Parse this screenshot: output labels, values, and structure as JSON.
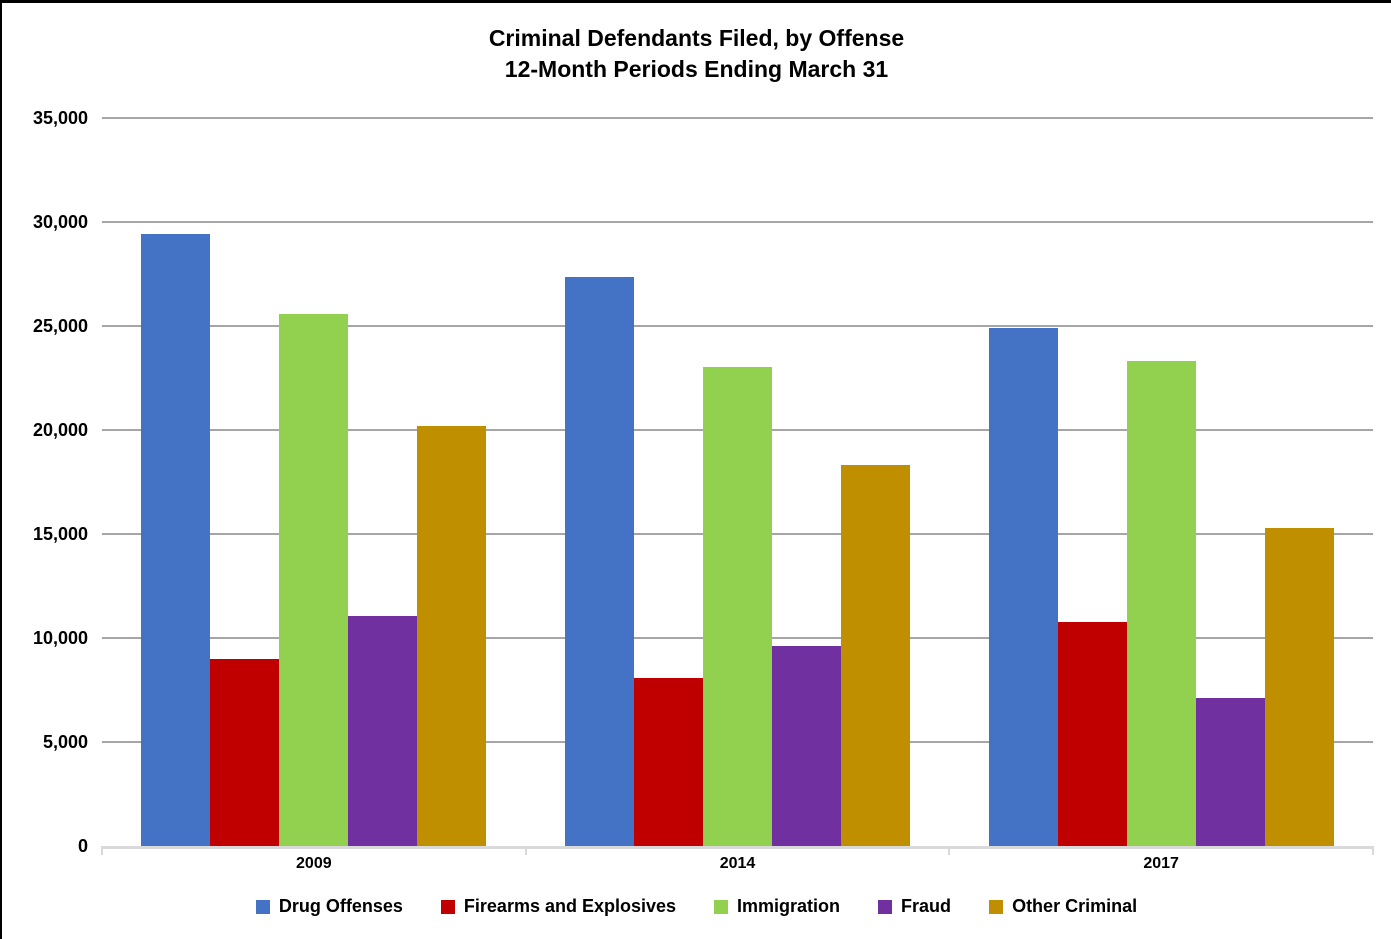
{
  "chart_data": {
    "type": "bar",
    "title_line1": "Criminal Defendants Filed, by Offense",
    "title_line2": "12-Month Periods Ending March 31",
    "categories": [
      "2009",
      "2014",
      "2017"
    ],
    "series": [
      {
        "name": "Drug Offenses",
        "color": "#4472c4",
        "values": [
          29400,
          27350,
          24900
        ]
      },
      {
        "name": "Firearms and Explosives",
        "color": "#c00000",
        "values": [
          9000,
          8100,
          10750
        ]
      },
      {
        "name": "Immigration",
        "color": "#92d050",
        "values": [
          25600,
          23050,
          23300
        ]
      },
      {
        "name": "Fraud",
        "color": "#7030a0",
        "values": [
          11050,
          9600,
          7100
        ]
      },
      {
        "name": "Other Criminal",
        "color": "#bf8f00",
        "values": [
          20200,
          18300,
          15300
        ]
      }
    ],
    "ylim": [
      0,
      35000
    ],
    "ytick_step": 5000,
    "ytick_labels": [
      "0",
      "5,000",
      "10,000",
      "15,000",
      "20,000",
      "25,000",
      "30,000",
      "35,000"
    ],
    "xlabel": "",
    "ylabel": "",
    "grid": true,
    "legend_position": "bottom",
    "colors": {
      "gridline": "#a6a6a6",
      "axis_line": "#d9d9d9",
      "text": "#000000",
      "background": "#ffffff"
    }
  }
}
